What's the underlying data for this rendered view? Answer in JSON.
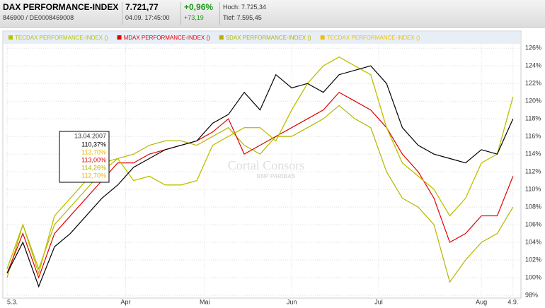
{
  "header": {
    "name": "DAX PERFORMANCE-INDEX",
    "id": "846900  /  DE0008469008",
    "price": "7.721,77",
    "time": "04.09. 17:45:00",
    "change_pct": "+0,96%",
    "change_abs": "+73,19",
    "high": "Hoch: 7.725,34",
    "low": "Tief: 7.595,45"
  },
  "watermark": [
    "Cortal Consors",
    "BNP PARIBAS"
  ],
  "tooltip": {
    "date": "13.04.2007",
    "rows": [
      {
        "text": "110,37%",
        "color": "#000000"
      },
      {
        "text": "112,70%",
        "color": "#e8b800"
      },
      {
        "text": "113,00%",
        "color": "#e00000"
      },
      {
        "text": "114,26%",
        "color": "#b5b500"
      },
      {
        "text": "112,70%",
        "color": "#e8b800"
      }
    ]
  },
  "chart_data": {
    "type": "line",
    "x": [
      0,
      4,
      8,
      12,
      16,
      20,
      24,
      28,
      32,
      36,
      40,
      44,
      48,
      52,
      56,
      60,
      64,
      68,
      72,
      76,
      80,
      84,
      88,
      92,
      96,
      100,
      104,
      108,
      112,
      116,
      120,
      124,
      128
    ],
    "base_series": {
      "color": "#000000",
      "values": [
        100.5,
        104,
        99,
        103.5,
        105,
        107,
        109,
        110.5,
        112.5,
        113.5,
        114.5,
        115,
        115.5,
        117.5,
        118.5,
        121,
        119,
        123,
        121.5,
        122,
        121,
        123,
        123.5,
        124,
        122,
        117,
        115,
        114,
        113.5,
        113,
        114.5,
        114,
        118
      ]
    },
    "series": [
      {
        "name": "TECDAX PERFORMANCE-INDEX ()",
        "color": "#b8c400",
        "values": [
          101,
          106,
          100.5,
          107,
          109,
          111,
          113,
          113.5,
          111,
          111.5,
          110.5,
          110.5,
          111,
          115,
          116,
          117,
          117,
          115.5,
          119,
          122,
          124,
          125,
          124,
          123,
          117,
          113,
          111.5,
          110,
          107,
          109,
          113,
          114,
          120.5
        ]
      },
      {
        "name": "MDAX PERFORMANCE-INDEX ()",
        "color": "#e00000",
        "values": [
          100.5,
          105,
          100,
          105,
          107,
          109,
          111,
          113,
          113,
          114,
          114.5,
          115,
          115.5,
          116.5,
          118,
          114,
          115,
          116,
          117,
          118,
          119,
          121,
          120,
          119,
          117,
          114,
          112,
          109,
          104,
          105,
          107,
          107,
          111.5
        ]
      },
      {
        "name": "SDAX PERFORMANCE-INDEX ()",
        "color": "#b5b500",
        "values": [
          100,
          106,
          101,
          106,
          108,
          110,
          112,
          113.5,
          114,
          115,
          115.5,
          115.5,
          115,
          116,
          117,
          115,
          114,
          116,
          116,
          117,
          118,
          119.5,
          118,
          117,
          112,
          109,
          108,
          106,
          99.5,
          102,
          104,
          105,
          108
        ]
      },
      {
        "name": "TECDAX PERFORMANCE-INDEX ()",
        "color": "#f0c000",
        "values": [
          101,
          106,
          100.5,
          107,
          109,
          111,
          113,
          113.5,
          111,
          111.5,
          110.5,
          110.5,
          111,
          115,
          116,
          117,
          117,
          115.5,
          119,
          122,
          124,
          125,
          124,
          123,
          117,
          113,
          111.5,
          110,
          107,
          109,
          113,
          114,
          120.5
        ]
      }
    ],
    "xlim": [
      0,
      130
    ],
    "xticks": [
      {
        "value": 0,
        "label": "5.3."
      },
      {
        "value": 30,
        "label": "Apr"
      },
      {
        "value": 50,
        "label": "Mai"
      },
      {
        "value": 72,
        "label": "Jun"
      },
      {
        "value": 94,
        "label": "Jul"
      },
      {
        "value": 120,
        "label": "Aug"
      },
      {
        "value": 128,
        "label": "4.9."
      }
    ],
    "ylim": [
      98,
      126.5
    ],
    "yticks": [
      {
        "value": 98,
        "label": "98%"
      },
      {
        "value": 100,
        "label": "100%"
      },
      {
        "value": 102,
        "label": "102%"
      },
      {
        "value": 104,
        "label": "104%"
      },
      {
        "value": 106,
        "label": "106%"
      },
      {
        "value": 108,
        "label": "108%"
      },
      {
        "value": 110,
        "label": "110%"
      },
      {
        "value": 112,
        "label": "112%"
      },
      {
        "value": 114,
        "label": "114%"
      },
      {
        "value": 116,
        "label": "116%"
      },
      {
        "value": 118,
        "label": "118%"
      },
      {
        "value": 120,
        "label": "120%"
      },
      {
        "value": 122,
        "label": "122%"
      },
      {
        "value": 124,
        "label": "124%"
      },
      {
        "value": 126,
        "label": "126%"
      }
    ],
    "grid": true
  }
}
